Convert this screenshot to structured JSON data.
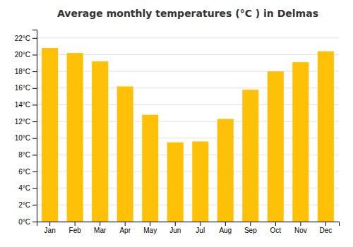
{
  "chart_data": {
    "type": "bar",
    "title": "Average monthly temperatures (°C ) in Delmas",
    "categories": [
      "Jan",
      "Feb",
      "Mar",
      "Apr",
      "May",
      "Jun",
      "Jul",
      "Aug",
      "Sep",
      "Oct",
      "Nov",
      "Dec"
    ],
    "values": [
      20.8,
      20.2,
      19.2,
      16.2,
      12.8,
      9.5,
      9.6,
      12.3,
      15.8,
      18.0,
      19.1,
      20.4
    ],
    "color": "#FFC107",
    "ylim": [
      0,
      23
    ],
    "yticks": [
      {
        "value": 0,
        "label": "0°C"
      },
      {
        "value": 2,
        "label": "2°C"
      },
      {
        "value": 4,
        "label": "4°C"
      },
      {
        "value": 6,
        "label": "6°C"
      },
      {
        "value": 8,
        "label": "8°C"
      },
      {
        "value": 10,
        "label": "10°C"
      },
      {
        "value": 12,
        "label": "12°C"
      },
      {
        "value": 14,
        "label": "14°C"
      },
      {
        "value": 16,
        "label": "16°C"
      },
      {
        "value": 18,
        "label": "18°C"
      },
      {
        "value": 20,
        "label": "20°C"
      },
      {
        "value": 22,
        "label": "22°C"
      }
    ],
    "grid": true
  }
}
